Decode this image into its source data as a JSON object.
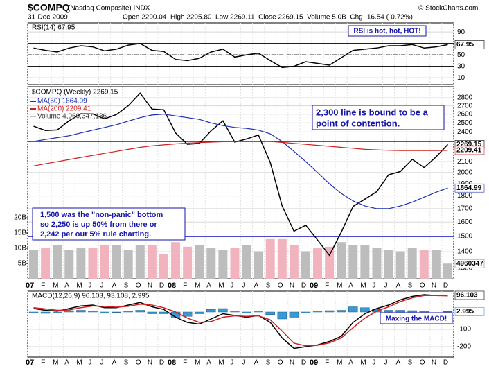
{
  "header": {
    "symbol": "$COMPQ",
    "name": "(Nasdaq Composite) INDX",
    "date": "31-Dec-2009",
    "quote": "Open 2290.04  High 2295.80  Low 2269.11  Close 2269.15  Volume 5.0B  Chg -16.54 (-0.72%)",
    "credit": "© StockCharts.com"
  },
  "chart_data": [
    {
      "type": "line",
      "title": "RSI(14) 67.95",
      "color": "#000000",
      "values": [
        62,
        58,
        55,
        62,
        66,
        64,
        57,
        60,
        67,
        70,
        58,
        56,
        42,
        40,
        44,
        55,
        60,
        46,
        50,
        53,
        40,
        28,
        30,
        38,
        35,
        32,
        45,
        58,
        60,
        62,
        66,
        66,
        68,
        62,
        64,
        67.95
      ],
      "ylim": [
        -2,
        106
      ],
      "yticks": [
        90,
        50,
        30,
        10
      ],
      "hlines": [
        70,
        50,
        30
      ],
      "annotations": [
        "RSI is hot, hot, HOT!"
      ]
    },
    {
      "type": "line",
      "title": "$COMPQ (Weekly) 2269.15",
      "log": true,
      "color": "#000000",
      "categories": [
        "07",
        "F",
        "M",
        "A",
        "M",
        "J",
        "J",
        "A",
        "S",
        "O",
        "N",
        "D",
        "08",
        "F",
        "M",
        "A",
        "M",
        "J",
        "J",
        "A",
        "S",
        "O",
        "N",
        "D",
        "09",
        "F",
        "M",
        "A",
        "M",
        "J",
        "J",
        "A",
        "S",
        "O",
        "N",
        "D"
      ],
      "values": [
        2463,
        2416,
        2422,
        2525,
        2605,
        2603,
        2546,
        2596,
        2701,
        2859,
        2661,
        2652,
        2389,
        2271,
        2279,
        2413,
        2523,
        2293,
        2326,
        2368,
        2092,
        1721,
        1536,
        1577,
        1476,
        1378,
        1529,
        1717,
        1774,
        1835,
        1979,
        2009,
        2122,
        2045,
        2145,
        2269.15
      ],
      "series": [
        {
          "name": "MA(50) 1864.99",
          "color": "#1c2fb0",
          "values": [
            2300,
            2320,
            2340,
            2360,
            2390,
            2420,
            2450,
            2480,
            2520,
            2560,
            2590,
            2600,
            2580,
            2560,
            2540,
            2500,
            2470,
            2450,
            2440,
            2420,
            2380,
            2300,
            2200,
            2100,
            2000,
            1900,
            1820,
            1760,
            1720,
            1700,
            1700,
            1720,
            1750,
            1790,
            1830,
            1864.99
          ]
        },
        {
          "name": "MA(200) 2209.41",
          "color": "#cc2020",
          "values": [
            2060,
            2080,
            2100,
            2120,
            2140,
            2160,
            2180,
            2200,
            2220,
            2240,
            2255,
            2265,
            2275,
            2282,
            2288,
            2293,
            2297,
            2300,
            2302,
            2303,
            2300,
            2290,
            2280,
            2270,
            2260,
            2250,
            2240,
            2230,
            2220,
            2215,
            2210,
            2208,
            2207,
            2207,
            2208,
            2209.41
          ]
        },
        {
          "name": "Volume 4,960,347,136",
          "color": "#bdbdbd",
          "type": "bar",
          "axis": "y2",
          "values": [
            9500000,
            10000000,
            11000000,
            9500000,
            10000000,
            10000000,
            11000000,
            11000000,
            9500000,
            11000000,
            11000000,
            8000000,
            12000000,
            10500000,
            11000000,
            10000000,
            9500000,
            10000000,
            11000000,
            9000000,
            13000000,
            13000000,
            11000000,
            9000000,
            10000000,
            10500000,
            12000000,
            11000000,
            11000000,
            10000000,
            9500000,
            9000000,
            10000000,
            9500000,
            9500000,
            4960347
          ]
        }
      ],
      "ylim": [
        1240,
        2943
      ],
      "yticks": [
        2800,
        2700,
        2600,
        2500,
        2400,
        2100,
        2000,
        1900,
        1800,
        1700,
        1600,
        1500,
        1400,
        1300
      ],
      "y2lim": [
        0,
        63000000
      ],
      "y2ticks": [
        {
          "value": 5000000,
          "label": "5B"
        },
        {
          "value": 10000000,
          "label": "10B"
        },
        {
          "value": 15000000,
          "label": "15B"
        },
        {
          "value": 20000000,
          "label": "20B"
        }
      ],
      "hlines": [
        2300,
        1500
      ],
      "annotations": [
        [
          "2,300 line is bound to be a",
          "point of contention."
        ],
        [
          "1,500 was the \"non-panic\" bottom",
          "so 2,250 is up 50% from there or",
          "2,242 per our 5% rule charting."
        ]
      ]
    },
    {
      "type": "line",
      "title": "MACD(12,26,9) 96.103, 93.108, 2.995",
      "categories": [
        "07",
        "F",
        "M",
        "A",
        "M",
        "J",
        "J",
        "A",
        "S",
        "O",
        "N",
        "D",
        "08",
        "F",
        "M",
        "A",
        "M",
        "J",
        "J",
        "A",
        "S",
        "O",
        "N",
        "D",
        "09",
        "F",
        "M",
        "A",
        "M",
        "J",
        "J",
        "A",
        "S",
        "O",
        "N",
        "D"
      ],
      "series": [
        {
          "color": "#3a98d4",
          "type": "bar",
          "values": [
            -5,
            -8,
            -5,
            8,
            10,
            5,
            -7,
            -3,
            7,
            10,
            -10,
            -10,
            -30,
            -25,
            -10,
            15,
            20,
            2,
            -5,
            2,
            -15,
            -40,
            -30,
            -5,
            2,
            8,
            10,
            30,
            25,
            15,
            10,
            10,
            8,
            5,
            0,
            2.995
          ]
        },
        {
          "color": "#000000",
          "values": [
            20,
            10,
            5,
            20,
            35,
            40,
            25,
            25,
            40,
            55,
            30,
            15,
            -30,
            -60,
            -70,
            -40,
            -10,
            -20,
            -30,
            -20,
            -60,
            -150,
            -210,
            -200,
            -190,
            -170,
            -140,
            -60,
            -10,
            20,
            40,
            70,
            90,
            100,
            95,
            96.103
          ]
        },
        {
          "color": "#d02020",
          "values": [
            25,
            18,
            10,
            12,
            25,
            35,
            32,
            28,
            33,
            45,
            40,
            25,
            0,
            -35,
            -60,
            -55,
            -30,
            -22,
            -25,
            -22,
            -45,
            -110,
            -180,
            -195,
            -192,
            -178,
            -150,
            -90,
            -35,
            5,
            30,
            60,
            82,
            95,
            95,
            93.108
          ]
        }
      ],
      "ylim": [
        -260,
        120
      ],
      "yticks": [
        -200,
        -100
      ],
      "annotations": [
        "Maxing the MACD!"
      ]
    }
  ]
}
